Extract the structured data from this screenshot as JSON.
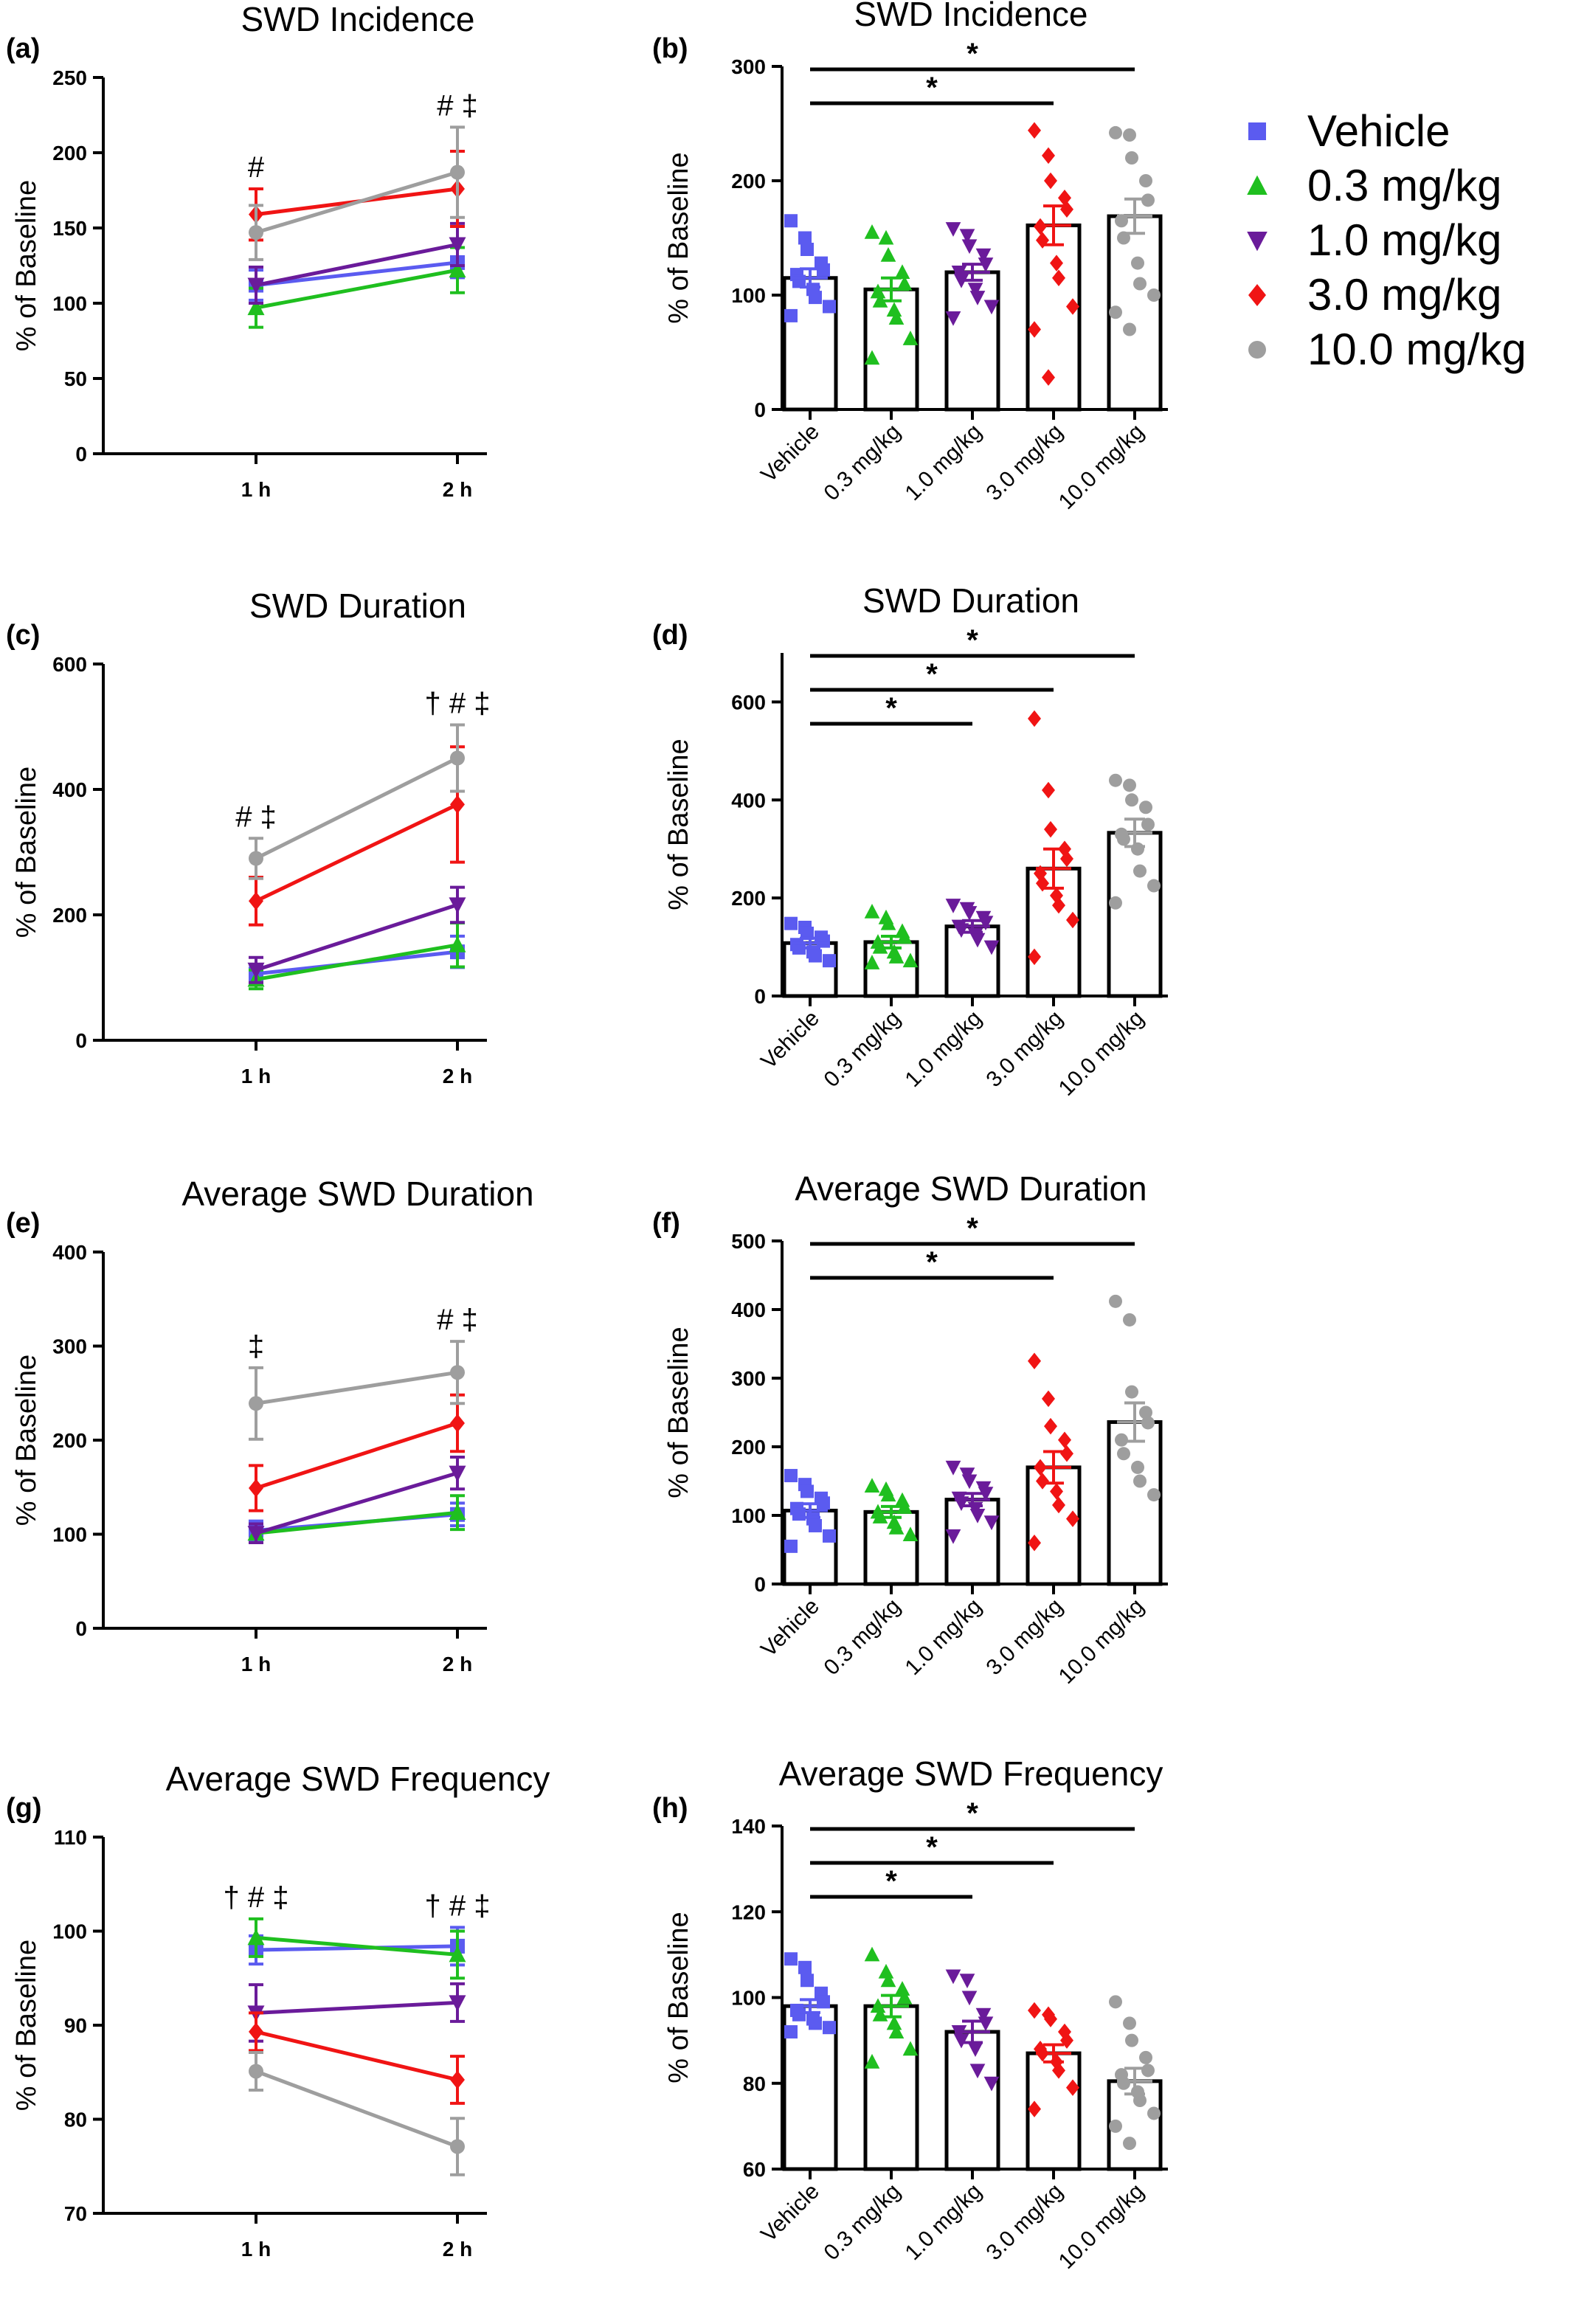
{
  "legend": {
    "entries": [
      {
        "label": "Vehicle",
        "color": "#5b5bf0",
        "marker": "square"
      },
      {
        "label": "0.3 mg/kg",
        "color": "#1fbf1f",
        "marker": "triangle-up"
      },
      {
        "label": "1.0 mg/kg",
        "color": "#6a1b9a",
        "marker": "triangle-down"
      },
      {
        "label": "3.0 mg/kg",
        "color": "#f01414",
        "marker": "diamond"
      },
      {
        "label": "10.0 mg/kg",
        "color": "#9e9e9e",
        "marker": "circle"
      }
    ]
  },
  "chart_data": [
    {
      "id": "a",
      "panel_label": "(a)",
      "type": "line",
      "title": "SWD Incidence",
      "ylabel": "% of Baseline",
      "ylim": [
        0,
        250
      ],
      "yticks": [
        0,
        50,
        100,
        150,
        200,
        250
      ],
      "categories": [
        "1 h",
        "2 h"
      ],
      "series": [
        {
          "name": "Vehicle",
          "values": [
            112,
            127
          ],
          "err": [
            10,
            10
          ]
        },
        {
          "name": "0.3 mg/kg",
          "values": [
            97,
            122
          ],
          "err": [
            13,
            15
          ]
        },
        {
          "name": "1.0 mg/kg",
          "values": [
            112,
            139
          ],
          "err": [
            12,
            14
          ]
        },
        {
          "name": "3.0 mg/kg",
          "values": [
            159,
            176
          ],
          "err": [
            17,
            25
          ]
        },
        {
          "name": "10.0 mg/kg",
          "values": [
            147,
            187
          ],
          "err": [
            18,
            30
          ]
        }
      ],
      "annotations": [
        {
          "x": "1 h",
          "text": "#"
        },
        {
          "x": "2 h",
          "text": "# ‡"
        }
      ]
    },
    {
      "id": "b",
      "panel_label": "(b)",
      "type": "bar",
      "title": "SWD Incidence",
      "ylabel": "% of Baseline",
      "ylim": [
        0,
        300
      ],
      "yticks": [
        0,
        100,
        200,
        300
      ],
      "categories": [
        "Vehicle",
        "0.3 mg/kg",
        "1.0 mg/kg",
        "3.0 mg/kg",
        "10.0 mg/kg"
      ],
      "values": [
        115,
        105,
        120,
        161,
        169
      ],
      "sem": [
        8,
        10,
        7,
        17,
        15
      ],
      "points": [
        [
          165,
          150,
          140,
          128,
          122,
          118,
          112,
          105,
          98,
          90,
          82
        ],
        [
          155,
          150,
          135,
          120,
          110,
          103,
          95,
          87,
          80,
          62,
          45
        ],
        [
          158,
          152,
          143,
          135,
          127,
          120,
          113,
          105,
          98,
          90,
          80
        ],
        [
          244,
          222,
          200,
          185,
          175,
          160,
          148,
          128,
          115,
          90,
          70,
          28
        ],
        [
          242,
          240,
          220,
          200,
          183,
          165,
          150,
          128,
          110,
          100,
          85,
          70
        ]
      ],
      "significance": [
        {
          "from": "Vehicle",
          "to": "10.0 mg/kg",
          "label": "*"
        },
        {
          "from": "Vehicle",
          "to": "3.0 mg/kg",
          "label": "*"
        }
      ]
    },
    {
      "id": "c",
      "panel_label": "(c)",
      "type": "line",
      "title": "SWD Duration",
      "ylabel": "% of Baseline",
      "ylim": [
        0,
        600
      ],
      "yticks": [
        0,
        200,
        400,
        600
      ],
      "categories": [
        "1 h",
        "2 h"
      ],
      "series": [
        {
          "name": "Vehicle",
          "values": [
            106,
            141
          ],
          "err": [
            15,
            25
          ]
        },
        {
          "name": "0.3 mg/kg",
          "values": [
            97,
            152
          ],
          "err": [
            15,
            35
          ]
        },
        {
          "name": "1.0 mg/kg",
          "values": [
            112,
            216
          ],
          "err": [
            20,
            28
          ]
        },
        {
          "name": "3.0 mg/kg",
          "values": [
            222,
            376
          ],
          "err": [
            38,
            92
          ]
        },
        {
          "name": "10.0 mg/kg",
          "values": [
            290,
            450
          ],
          "err": [
            32,
            53
          ]
        }
      ],
      "annotations": [
        {
          "x": "1 h",
          "text": "# ‡"
        },
        {
          "x": "2 h",
          "text": "† # ‡"
        }
      ]
    },
    {
      "id": "d",
      "panel_label": "(d)",
      "type": "bar",
      "title": "SWD Duration",
      "ylabel": "% of Baseline",
      "ylim": [
        0,
        700
      ],
      "yticks": [
        0,
        200,
        400,
        600
      ],
      "categories": [
        "Vehicle",
        "0.3 mg/kg",
        "1.0 mg/kg",
        "3.0 mg/kg",
        "10.0 mg/kg"
      ],
      "values": [
        108,
        110,
        142,
        260,
        333
      ],
      "sem": [
        10,
        12,
        12,
        40,
        28
      ],
      "points": [
        [
          148,
          140,
          128,
          120,
          112,
          105,
          98,
          90,
          82,
          72
        ],
        [
          172,
          160,
          148,
          132,
          120,
          110,
          100,
          90,
          80,
          72,
          68
        ],
        [
          185,
          178,
          170,
          160,
          150,
          142,
          135,
          125,
          115,
          100
        ],
        [
          566,
          420,
          340,
          300,
          280,
          250,
          230,
          205,
          185,
          155,
          80
        ],
        [
          440,
          430,
          400,
          385,
          350,
          330,
          320,
          300,
          255,
          225,
          190
        ]
      ],
      "significance": [
        {
          "from": "Vehicle",
          "to": "10.0 mg/kg",
          "label": "*"
        },
        {
          "from": "Vehicle",
          "to": "3.0 mg/kg",
          "label": "*"
        },
        {
          "from": "Vehicle",
          "to": "1.0 mg/kg",
          "label": "*"
        }
      ]
    },
    {
      "id": "e",
      "panel_label": "(e)",
      "type": "line",
      "title": "Average SWD Duration",
      "ylabel": "% of Baseline",
      "ylim": [
        0,
        400
      ],
      "yticks": [
        0,
        100,
        200,
        300,
        400
      ],
      "categories": [
        "1 h",
        "2 h"
      ],
      "series": [
        {
          "name": "Vehicle",
          "values": [
            104,
            121
          ],
          "err": [
            10,
            12
          ]
        },
        {
          "name": "0.3 mg/kg",
          "values": [
            101,
            123
          ],
          "err": [
            10,
            18
          ]
        },
        {
          "name": "1.0 mg/kg",
          "values": [
            101,
            165
          ],
          "err": [
            10,
            17
          ]
        },
        {
          "name": "3.0 mg/kg",
          "values": [
            149,
            218
          ],
          "err": [
            24,
            30
          ]
        },
        {
          "name": "10.0 mg/kg",
          "values": [
            239,
            272
          ],
          "err": [
            38,
            33
          ]
        }
      ],
      "annotations": [
        {
          "x": "1 h",
          "text": "‡"
        },
        {
          "x": "2 h",
          "text": "# ‡"
        }
      ]
    },
    {
      "id": "f",
      "panel_label": "(f)",
      "type": "bar",
      "title": "Average SWD Duration",
      "ylabel": "% of Baseline",
      "ylim": [
        0,
        500
      ],
      "yticks": [
        0,
        100,
        200,
        300,
        400,
        500
      ],
      "categories": [
        "Vehicle",
        "0.3 mg/kg",
        "1.0 mg/kg",
        "3.0 mg/kg",
        "10.0 mg/kg"
      ],
      "values": [
        107,
        105,
        123,
        170,
        236
      ],
      "sem": [
        10,
        8,
        9,
        23,
        28
      ],
      "points": [
        [
          158,
          145,
          135,
          125,
          118,
          110,
          102,
          95,
          85,
          70,
          55
        ],
        [
          143,
          138,
          130,
          122,
          112,
          105,
          98,
          90,
          82,
          72
        ],
        [
          170,
          160,
          150,
          140,
          132,
          125,
          118,
          110,
          100,
          90,
          70
        ],
        [
          325,
          270,
          230,
          210,
          190,
          170,
          150,
          135,
          115,
          95,
          60
        ],
        [
          412,
          385,
          280,
          250,
          235,
          210,
          190,
          170,
          150,
          130
        ]
      ],
      "significance": [
        {
          "from": "Vehicle",
          "to": "10.0 mg/kg",
          "label": "*"
        },
        {
          "from": "Vehicle",
          "to": "3.0 mg/kg",
          "label": "*"
        }
      ]
    },
    {
      "id": "g",
      "panel_label": "(g)",
      "type": "line",
      "title": "Average SWD Frequency",
      "ylabel": "% of Baseline",
      "ylim": [
        70,
        110
      ],
      "yticks": [
        70,
        80,
        90,
        100,
        110
      ],
      "categories": [
        "1 h",
        "2 h"
      ],
      "series": [
        {
          "name": "Vehicle",
          "values": [
            98,
            98.4
          ],
          "err": [
            1.5,
            2
          ]
        },
        {
          "name": "0.3 mg/kg",
          "values": [
            99.3,
            97.5
          ],
          "err": [
            2,
            2.5
          ]
        },
        {
          "name": "1.0 mg/kg",
          "values": [
            91.3,
            92.4
          ],
          "err": [
            3,
            2
          ]
        },
        {
          "name": "3.0 mg/kg",
          "values": [
            89.3,
            84.2
          ],
          "err": [
            2,
            2.5
          ]
        },
        {
          "name": "10.0 mg/kg",
          "values": [
            85.1,
            77.1
          ],
          "err": [
            2,
            3
          ]
        }
      ],
      "annotations": [
        {
          "x": "1 h",
          "text": "† # ‡"
        },
        {
          "x": "2 h",
          "text": "† # ‡"
        }
      ]
    },
    {
      "id": "h",
      "panel_label": "(h)",
      "type": "bar",
      "title": "Average SWD Frequency",
      "ylabel": "% of Baseline",
      "ylim": [
        60,
        140
      ],
      "yticks": [
        60,
        80,
        100,
        120,
        140
      ],
      "categories": [
        "Vehicle",
        "0.3 mg/kg",
        "1.0 mg/kg",
        "3.0 mg/kg",
        "10.0 mg/kg"
      ],
      "values": [
        98,
        98,
        92,
        87,
        80.5
      ],
      "sem": [
        1.5,
        2.5,
        2.5,
        2,
        3
      ],
      "points": [
        [
          109,
          107,
          104,
          101,
          99,
          97,
          96,
          95,
          94,
          93,
          92
        ],
        [
          110,
          106,
          104,
          102,
          100,
          98,
          96,
          94,
          92,
          88,
          85
        ],
        [
          105,
          104,
          100,
          96,
          94,
          92,
          90,
          88,
          83,
          80
        ],
        [
          97,
          96,
          95,
          92,
          90,
          88,
          87,
          85,
          83,
          79,
          74
        ],
        [
          99,
          94,
          90,
          86,
          83,
          82,
          80,
          78,
          76,
          73,
          70,
          66
        ]
      ],
      "significance": [
        {
          "from": "Vehicle",
          "to": "10.0 mg/kg",
          "label": "*"
        },
        {
          "from": "Vehicle",
          "to": "3.0 mg/kg",
          "label": "*"
        },
        {
          "from": "Vehicle",
          "to": "1.0 mg/kg",
          "label": "*"
        }
      ]
    }
  ]
}
